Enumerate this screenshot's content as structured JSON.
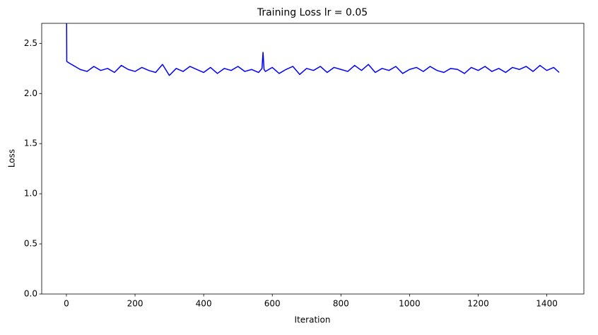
{
  "chart_data": {
    "type": "line",
    "title": "Training Loss lr = 0.05",
    "xlabel": "Iteration",
    "ylabel": "Loss",
    "x": [
      0,
      1,
      5,
      10,
      20,
      30,
      40,
      60,
      80,
      100,
      120,
      140,
      160,
      180,
      200,
      220,
      240,
      260,
      280,
      300,
      320,
      340,
      360,
      380,
      400,
      420,
      440,
      460,
      480,
      500,
      520,
      540,
      560,
      570,
      573,
      576,
      580,
      600,
      620,
      640,
      660,
      680,
      700,
      720,
      740,
      760,
      780,
      800,
      820,
      840,
      860,
      880,
      900,
      920,
      940,
      960,
      980,
      1000,
      1020,
      1040,
      1060,
      1080,
      1100,
      1120,
      1140,
      1160,
      1180,
      1200,
      1220,
      1240,
      1260,
      1280,
      1300,
      1320,
      1340,
      1360,
      1380,
      1400,
      1420,
      1436
    ],
    "series": [
      {
        "name": "Loss",
        "color": "#0000ff",
        "values": [
          3.2,
          2.32,
          2.31,
          2.3,
          2.28,
          2.26,
          2.24,
          2.22,
          2.27,
          2.23,
          2.25,
          2.21,
          2.28,
          2.24,
          2.22,
          2.26,
          2.23,
          2.21,
          2.29,
          2.18,
          2.25,
          2.22,
          2.27,
          2.24,
          2.21,
          2.26,
          2.2,
          2.25,
          2.23,
          2.27,
          2.22,
          2.24,
          2.21,
          2.25,
          2.41,
          2.24,
          2.22,
          2.26,
          2.2,
          2.24,
          2.27,
          2.19,
          2.25,
          2.23,
          2.27,
          2.21,
          2.26,
          2.24,
          2.22,
          2.28,
          2.23,
          2.29,
          2.21,
          2.25,
          2.23,
          2.27,
          2.2,
          2.24,
          2.26,
          2.22,
          2.27,
          2.23,
          2.21,
          2.25,
          2.24,
          2.2,
          2.26,
          2.23,
          2.27,
          2.22,
          2.25,
          2.21,
          2.26,
          2.24,
          2.27,
          2.22,
          2.28,
          2.23,
          2.26,
          2.21
        ]
      }
    ],
    "xlim": [
      -72,
      1508
    ],
    "ylim": [
      0,
      2.7
    ],
    "xticks": [
      0,
      200,
      400,
      600,
      800,
      1000,
      1200,
      1400
    ],
    "yticks": [
      {
        "value": 0,
        "label": "0.0"
      },
      0.5,
      {
        "value": 1,
        "label": "1.0"
      },
      1.5,
      {
        "value": 2,
        "label": "2.0"
      },
      2.5
    ],
    "grid": false
  }
}
